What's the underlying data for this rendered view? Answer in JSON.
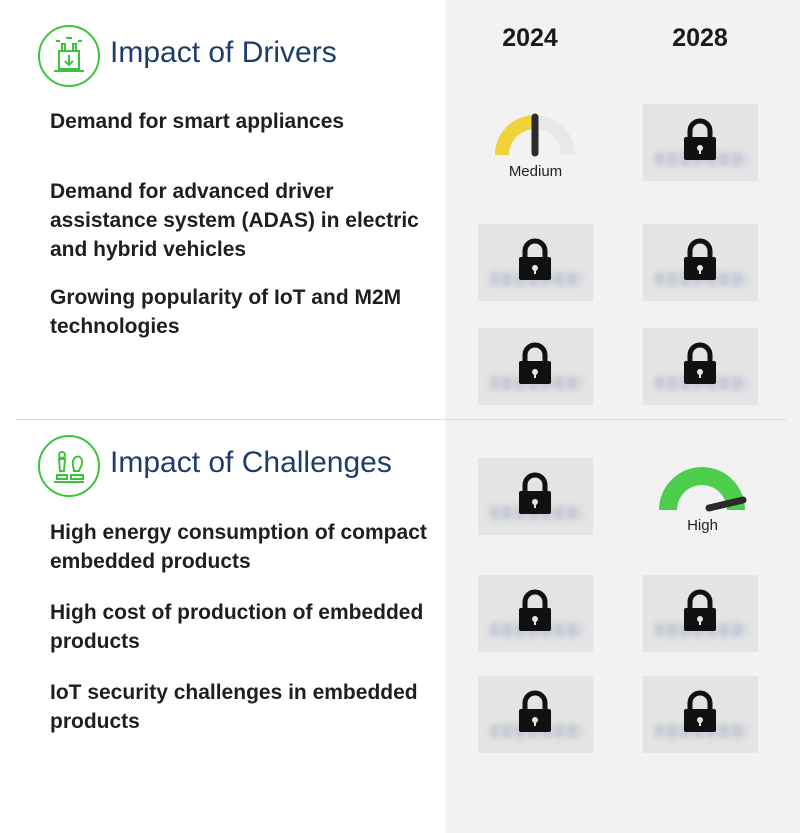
{
  "years": [
    "2024",
    "2028"
  ],
  "drivers": {
    "title": "Impact of Drivers",
    "icon": "factory-icon",
    "items": [
      {
        "label": "Demand for smart appliances"
      },
      {
        "label": "Demand for advanced driver assistance system (ADAS) in electric and hybrid vehicles"
      },
      {
        "label": "Growing popularity of IoT and M2M technologies"
      }
    ]
  },
  "challenges": {
    "title": "Impact of Challenges",
    "icon": "chess-icon",
    "items": [
      {
        "label": "High energy consumption of compact embedded products"
      },
      {
        "label": "High cost of production of embedded products"
      },
      {
        "label": "IoT security challenges in embedded products"
      }
    ]
  },
  "gauges": [
    {
      "section": "drivers",
      "year": "2024",
      "label": "Medium",
      "level": 0.5,
      "color": "#f0d33a"
    },
    {
      "section": "challenges",
      "year": "2028",
      "label": "High",
      "level": 1.0,
      "color": "#4ccd4c"
    }
  ],
  "locked_cells": [
    "drivers-2028-1",
    "drivers-2024-2",
    "drivers-2028-2",
    "drivers-2024-3",
    "drivers-2028-3",
    "challenges-2024-1",
    "challenges-2024-2",
    "challenges-2028-2",
    "challenges-2024-3",
    "challenges-2028-3"
  ],
  "colors": {
    "accent_green": "#3ec23e",
    "title_blue": "#1c3d6b",
    "panel_bg": "#f2f2f2",
    "locked_card_bg": "#e4e4e4",
    "lock_icon": "#111111"
  }
}
